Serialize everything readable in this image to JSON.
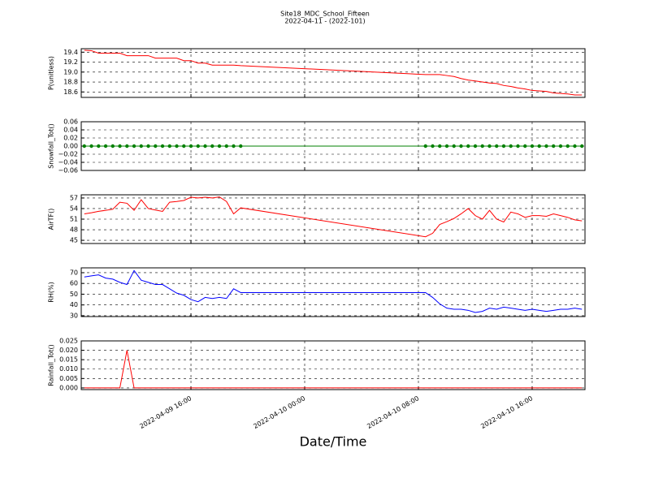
{
  "title": "Site18_MDC_School_Fifteen",
  "subtitle": "2022-04-11 - (2022-101)",
  "xlabel": "Date/Time",
  "chart_data": [
    {
      "type": "line",
      "ylabel": "P(unitless)",
      "color": "#ff0000",
      "grid": true,
      "xlim": [
        "2022-04-09 08:17",
        "2022-04-10 19:43"
      ],
      "ylim": [
        18.49,
        19.47
      ],
      "yticks": [
        {
          "value": 18.6,
          "label": "18.6"
        },
        {
          "value": 18.8,
          "label": "18.8"
        },
        {
          "value": 19.0,
          "label": "19.0"
        },
        {
          "value": 19.2,
          "label": "19.2"
        },
        {
          "value": 19.4,
          "label": "19.4"
        }
      ],
      "x": [
        "2022-04-09 08:30",
        "2022-04-09 09:00",
        "2022-04-09 09:30",
        "2022-04-09 10:00",
        "2022-04-09 10:30",
        "2022-04-09 11:00",
        "2022-04-09 11:30",
        "2022-04-09 12:00",
        "2022-04-09 12:30",
        "2022-04-09 13:00",
        "2022-04-09 13:30",
        "2022-04-09 14:00",
        "2022-04-09 14:30",
        "2022-04-09 15:00",
        "2022-04-09 15:30",
        "2022-04-09 16:00",
        "2022-04-09 16:30",
        "2022-04-09 17:00",
        "2022-04-09 17:30",
        "2022-04-09 18:00",
        "2022-04-09 18:30",
        "2022-04-09 19:00",
        "2022-04-09 19:30",
        "2022-04-10 08:30",
        "2022-04-10 09:00",
        "2022-04-10 09:30",
        "2022-04-10 10:00",
        "2022-04-10 10:30",
        "2022-04-10 11:00",
        "2022-04-10 11:30",
        "2022-04-10 12:00",
        "2022-04-10 12:30",
        "2022-04-10 13:00",
        "2022-04-10 13:30",
        "2022-04-10 14:00",
        "2022-04-10 14:30",
        "2022-04-10 15:00",
        "2022-04-10 15:30",
        "2022-04-10 16:00",
        "2022-04-10 16:30",
        "2022-04-10 17:00",
        "2022-04-10 17:30",
        "2022-04-10 18:00",
        "2022-04-10 18:30",
        "2022-04-10 19:00",
        "2022-04-10 19:30"
      ],
      "values": [
        19.44,
        19.43,
        19.38,
        19.38,
        19.38,
        19.38,
        19.33,
        19.33,
        19.33,
        19.33,
        19.28,
        19.28,
        19.28,
        19.28,
        19.23,
        19.23,
        19.18,
        19.18,
        19.14,
        19.14,
        19.14,
        19.14,
        19.13,
        18.95,
        18.95,
        18.95,
        18.93,
        18.91,
        18.87,
        18.84,
        18.82,
        18.8,
        18.78,
        18.77,
        18.73,
        18.71,
        18.68,
        18.66,
        18.63,
        18.62,
        18.61,
        18.58,
        18.57,
        18.56,
        18.54,
        18.54
      ]
    },
    {
      "type": "line",
      "ylabel": "Snowfall_Tot()",
      "color": "#008000",
      "marker": "o",
      "grid": true,
      "xlim": [
        "2022-04-09 08:17",
        "2022-04-10 19:43"
      ],
      "ylim": [
        -0.06,
        0.06
      ],
      "yticks": [
        {
          "value": -0.06,
          "label": "−0.06"
        },
        {
          "value": -0.04,
          "label": "−0.04"
        },
        {
          "value": -0.02,
          "label": "−0.02"
        },
        {
          "value": 0,
          "label": "0.00"
        },
        {
          "value": 0.02,
          "label": "0.02"
        },
        {
          "value": 0.04,
          "label": "0.04"
        },
        {
          "value": 0.06,
          "label": "0.06"
        }
      ],
      "x": [
        "2022-04-09 08:30",
        "2022-04-09 09:00",
        "2022-04-09 09:30",
        "2022-04-09 10:00",
        "2022-04-09 10:30",
        "2022-04-09 11:00",
        "2022-04-09 11:30",
        "2022-04-09 12:00",
        "2022-04-09 12:30",
        "2022-04-09 13:00",
        "2022-04-09 13:30",
        "2022-04-09 14:00",
        "2022-04-09 14:30",
        "2022-04-09 15:00",
        "2022-04-09 15:30",
        "2022-04-09 16:00",
        "2022-04-09 16:30",
        "2022-04-09 17:00",
        "2022-04-09 17:30",
        "2022-04-09 18:00",
        "2022-04-09 18:30",
        "2022-04-09 19:00",
        "2022-04-09 19:30",
        "2022-04-10 08:30",
        "2022-04-10 09:00",
        "2022-04-10 09:30",
        "2022-04-10 10:00",
        "2022-04-10 10:30",
        "2022-04-10 11:00",
        "2022-04-10 11:30",
        "2022-04-10 12:00",
        "2022-04-10 12:30",
        "2022-04-10 13:00",
        "2022-04-10 13:30",
        "2022-04-10 14:00",
        "2022-04-10 14:30",
        "2022-04-10 15:00",
        "2022-04-10 15:30",
        "2022-04-10 16:00",
        "2022-04-10 16:30",
        "2022-04-10 17:00",
        "2022-04-10 17:30",
        "2022-04-10 18:00",
        "2022-04-10 18:30",
        "2022-04-10 19:00",
        "2022-04-10 19:30"
      ],
      "values": [
        0,
        0,
        0,
        0,
        0,
        0,
        0,
        0,
        0,
        0,
        0,
        0,
        0,
        0,
        0,
        0,
        0,
        0,
        0,
        0,
        0,
        0,
        0,
        0,
        0,
        0,
        0,
        0,
        0,
        0,
        0,
        0,
        0,
        0,
        0,
        0,
        0,
        0,
        0,
        0,
        0,
        0,
        0,
        0,
        0,
        0
      ]
    },
    {
      "type": "line",
      "ylabel": "AirTF()",
      "color": "#ff0000",
      "grid": true,
      "xlim": [
        "2022-04-09 08:17",
        "2022-04-10 19:43"
      ],
      "ylim": [
        44.1,
        57.9
      ],
      "yticks": [
        45,
        48,
        51,
        54,
        57
      ],
      "x": [
        "2022-04-09 08:30",
        "2022-04-09 09:00",
        "2022-04-09 09:30",
        "2022-04-09 10:00",
        "2022-04-09 10:30",
        "2022-04-09 11:00",
        "2022-04-09 11:30",
        "2022-04-09 12:00",
        "2022-04-09 12:30",
        "2022-04-09 13:00",
        "2022-04-09 13:30",
        "2022-04-09 14:00",
        "2022-04-09 14:30",
        "2022-04-09 15:00",
        "2022-04-09 15:30",
        "2022-04-09 16:00",
        "2022-04-09 16:30",
        "2022-04-09 17:00",
        "2022-04-09 17:30",
        "2022-04-09 18:00",
        "2022-04-09 18:30",
        "2022-04-09 19:00",
        "2022-04-09 19:30",
        "2022-04-10 08:30",
        "2022-04-10 09:00",
        "2022-04-10 09:30",
        "2022-04-10 10:00",
        "2022-04-10 10:30",
        "2022-04-10 11:00",
        "2022-04-10 11:30",
        "2022-04-10 12:00",
        "2022-04-10 12:30",
        "2022-04-10 13:00",
        "2022-04-10 13:30",
        "2022-04-10 14:00",
        "2022-04-10 14:30",
        "2022-04-10 15:00",
        "2022-04-10 15:30",
        "2022-04-10 16:00",
        "2022-04-10 16:30",
        "2022-04-10 17:00",
        "2022-04-10 17:30",
        "2022-04-10 18:00",
        "2022-04-10 18:30",
        "2022-04-10 19:00",
        "2022-04-10 19:30"
      ],
      "values": [
        52.5,
        52.8,
        53.2,
        53.5,
        53.8,
        55.8,
        55.5,
        53.5,
        56.5,
        54,
        53.6,
        53.2,
        55.8,
        56,
        56.3,
        57.2,
        57,
        57.2,
        57,
        57.3,
        56,
        52.5,
        54.2,
        46,
        47,
        49.5,
        50.3,
        51.2,
        52.5,
        54,
        52,
        51,
        53.5,
        51,
        50.2,
        53,
        52.5,
        51.5,
        52,
        52,
        51.8,
        52.5,
        52,
        51.5,
        50.8,
        50.5
      ]
    },
    {
      "type": "line",
      "ylabel": "RH(%)",
      "color": "#0000ff",
      "grid": true,
      "xlim": [
        "2022-04-09 08:17",
        "2022-04-10 19:43"
      ],
      "ylim": [
        29.2,
        74.5
      ],
      "yticks": [
        30,
        40,
        50,
        60,
        70
      ],
      "x": [
        "2022-04-09 08:30",
        "2022-04-09 09:00",
        "2022-04-09 09:30",
        "2022-04-09 10:00",
        "2022-04-09 10:30",
        "2022-04-09 11:00",
        "2022-04-09 11:30",
        "2022-04-09 12:00",
        "2022-04-09 12:30",
        "2022-04-09 13:00",
        "2022-04-09 13:30",
        "2022-04-09 14:00",
        "2022-04-09 14:30",
        "2022-04-09 15:00",
        "2022-04-09 15:30",
        "2022-04-09 16:00",
        "2022-04-09 16:30",
        "2022-04-09 17:00",
        "2022-04-09 17:30",
        "2022-04-09 18:00",
        "2022-04-09 18:30",
        "2022-04-09 19:00",
        "2022-04-09 19:30",
        "2022-04-10 08:30",
        "2022-04-10 09:00",
        "2022-04-10 09:30",
        "2022-04-10 10:00",
        "2022-04-10 10:30",
        "2022-04-10 11:00",
        "2022-04-10 11:30",
        "2022-04-10 12:00",
        "2022-04-10 12:30",
        "2022-04-10 13:00",
        "2022-04-10 13:30",
        "2022-04-10 14:00",
        "2022-04-10 14:30",
        "2022-04-10 15:00",
        "2022-04-10 15:30",
        "2022-04-10 16:00",
        "2022-04-10 16:30",
        "2022-04-10 17:00",
        "2022-04-10 17:30",
        "2022-04-10 18:00",
        "2022-04-10 18:30",
        "2022-04-10 19:00",
        "2022-04-10 19:30"
      ],
      "values": [
        66,
        67,
        68,
        65,
        64,
        61,
        59,
        72,
        63,
        61,
        59,
        59,
        55,
        51,
        49,
        45,
        43,
        47,
        46,
        47,
        46,
        55,
        51.5,
        51.5,
        47,
        41,
        37,
        36,
        36,
        35,
        33,
        34,
        37,
        36,
        38,
        37,
        36,
        35,
        36,
        35,
        34,
        35,
        36,
        36,
        37,
        36
      ]
    },
    {
      "type": "line",
      "ylabel": "Rainfall_Tot()",
      "color": "#ff0000",
      "grid": true,
      "xlim": [
        "2022-04-09 08:17",
        "2022-04-10 19:43"
      ],
      "ylim": [
        -0.0009,
        0.025
      ],
      "yticks": [
        {
          "value": 0,
          "label": "0.000"
        },
        {
          "value": 0.005,
          "label": "0.005"
        },
        {
          "value": 0.01,
          "label": "0.010"
        },
        {
          "value": 0.015,
          "label": "0.015"
        },
        {
          "value": 0.02,
          "label": "0.020"
        },
        {
          "value": 0.025,
          "label": "0.025"
        }
      ],
      "xticks": [
        "2022-04-09 16:00",
        "2022-04-10 00:00",
        "2022-04-10 08:00",
        "2022-04-10 16:00"
      ],
      "x": [
        "2022-04-09 08:30",
        "2022-04-09 09:00",
        "2022-04-09 09:30",
        "2022-04-09 10:00",
        "2022-04-09 10:30",
        "2022-04-09 11:00",
        "2022-04-09 11:30",
        "2022-04-09 12:00",
        "2022-04-09 12:30",
        "2022-04-09 13:00",
        "2022-04-09 13:30",
        "2022-04-09 14:00",
        "2022-04-09 14:30",
        "2022-04-09 15:00",
        "2022-04-09 15:30",
        "2022-04-09 16:00",
        "2022-04-09 16:30",
        "2022-04-09 17:00",
        "2022-04-09 17:30",
        "2022-04-09 18:00",
        "2022-04-09 18:30",
        "2022-04-09 19:00",
        "2022-04-09 19:30",
        "2022-04-10 08:30",
        "2022-04-10 09:00",
        "2022-04-10 09:30",
        "2022-04-10 10:00",
        "2022-04-10 10:30",
        "2022-04-10 11:00",
        "2022-04-10 11:30",
        "2022-04-10 12:00",
        "2022-04-10 12:30",
        "2022-04-10 13:00",
        "2022-04-10 13:30",
        "2022-04-10 14:00",
        "2022-04-10 14:30",
        "2022-04-10 15:00",
        "2022-04-10 15:30",
        "2022-04-10 16:00",
        "2022-04-10 16:30",
        "2022-04-10 17:00",
        "2022-04-10 17:30",
        "2022-04-10 18:00",
        "2022-04-10 18:30",
        "2022-04-10 19:00",
        "2022-04-10 19:30"
      ],
      "values": [
        0,
        0,
        0,
        0,
        0,
        0,
        0.02,
        0,
        0,
        0,
        0,
        0,
        0,
        0,
        0,
        0,
        0,
        0,
        0,
        0,
        0,
        0,
        0,
        0,
        0,
        0,
        0,
        0,
        0,
        0,
        0,
        0,
        0,
        0,
        0,
        0,
        0,
        0,
        0,
        0,
        0,
        0,
        0,
        0,
        0,
        0
      ]
    }
  ]
}
